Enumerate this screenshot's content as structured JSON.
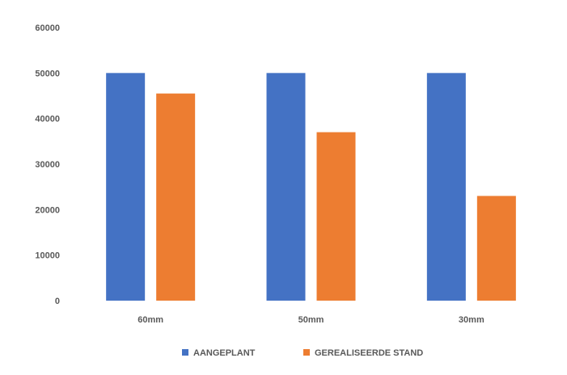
{
  "chart_data": {
    "type": "bar",
    "categories": [
      "60mm",
      "50mm",
      "30mm"
    ],
    "series": [
      {
        "name": "AANGEPLANT",
        "values": [
          50000,
          50000,
          50000
        ],
        "color": "#4472C4"
      },
      {
        "name": "GEREALISEERDE STAND",
        "values": [
          45500,
          37000,
          23000
        ],
        "color": "#ED7D31"
      }
    ],
    "ylim": [
      0,
      60000
    ],
    "yticks": [
      0,
      10000,
      20000,
      30000,
      40000,
      50000,
      60000
    ],
    "ytick_labels": [
      "0",
      "10000",
      "20000",
      "30000",
      "40000",
      "50000",
      "60000"
    ],
    "grid": false,
    "legend_position": "bottom"
  }
}
